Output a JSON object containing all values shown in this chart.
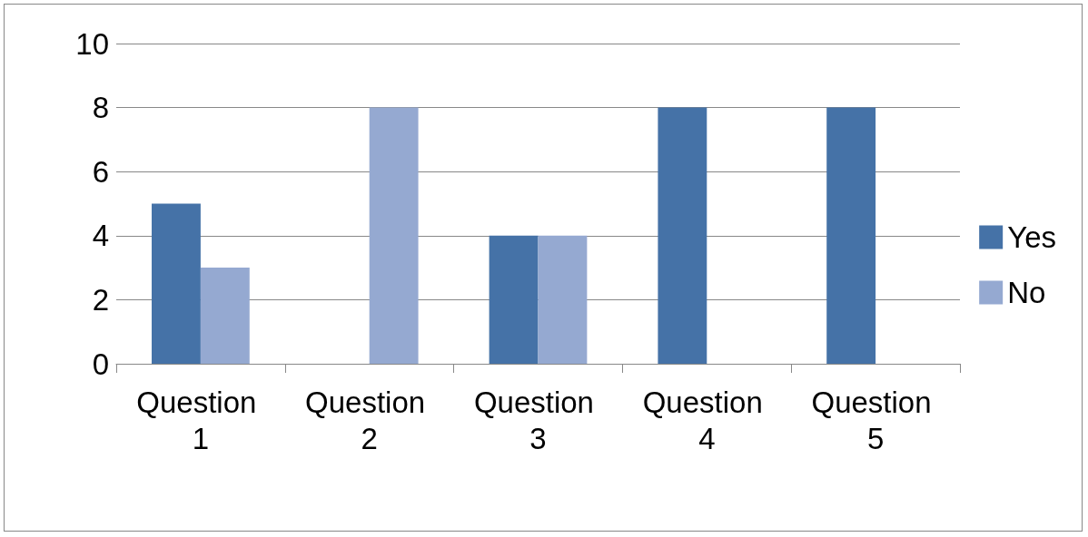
{
  "chart_data": {
    "type": "bar",
    "categories": [
      "Question 1",
      "Question 2",
      "Question 3",
      "Question 4",
      "Question 5"
    ],
    "series": [
      {
        "name": "Yes",
        "color": "#4572a7",
        "values": [
          5,
          0,
          4,
          8,
          8
        ]
      },
      {
        "name": "No",
        "color": "#95a9d1",
        "values": [
          3,
          8,
          4,
          0,
          0
        ]
      }
    ],
    "ylim": [
      0,
      10
    ],
    "yticks": [
      0,
      2,
      4,
      6,
      8,
      10
    ],
    "grid": "y",
    "legend": "right"
  }
}
